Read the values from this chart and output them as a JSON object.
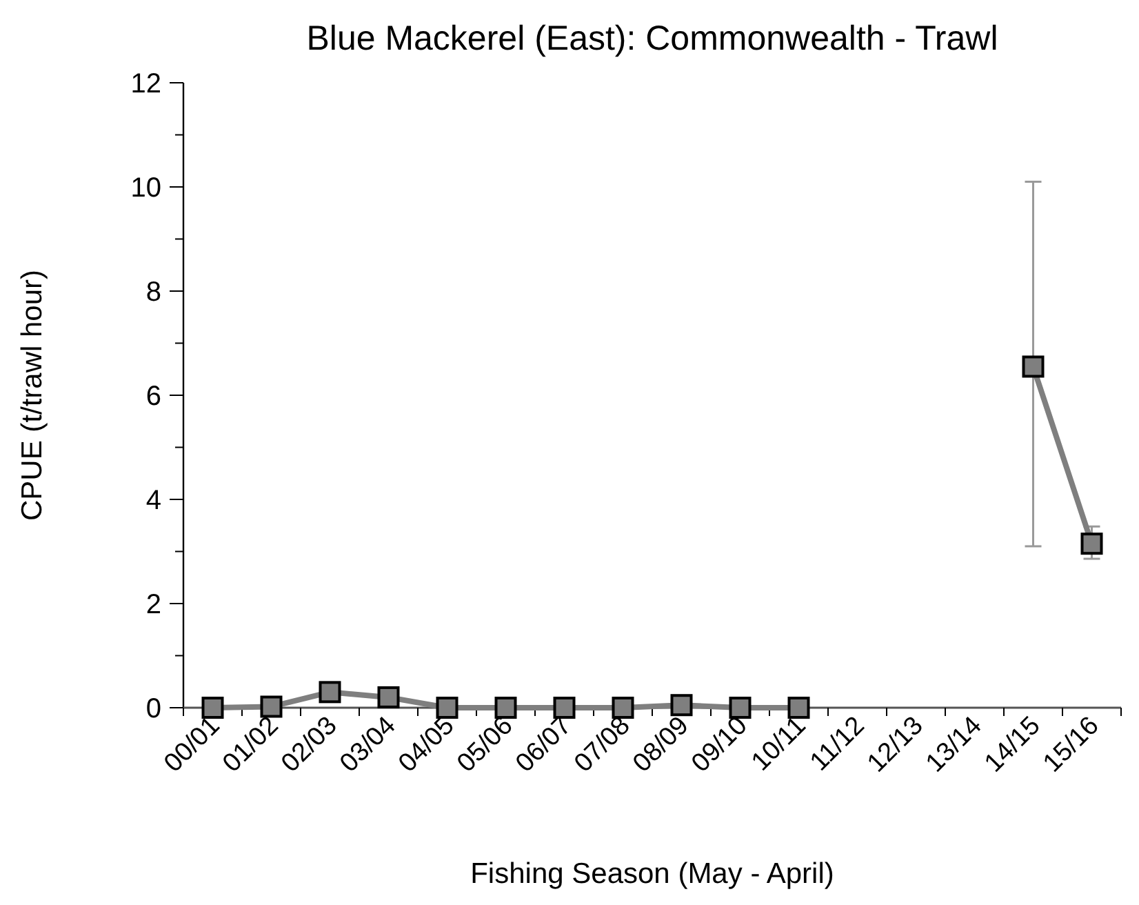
{
  "chart_data": {
    "type": "line",
    "title": "Blue Mackerel (East): Commonwealth - Trawl",
    "xlabel": "Fishing Season (May - April)",
    "ylabel": "CPUE (t/trawl hour)",
    "categories": [
      "00/01",
      "01/02",
      "02/03",
      "03/04",
      "04/05",
      "05/06",
      "06/07",
      "07/08",
      "08/09",
      "09/10",
      "10/11",
      "11/12",
      "12/13",
      "13/14",
      "14/15",
      "15/16"
    ],
    "series": [
      {
        "color": "#7f7f7f",
        "values": [
          0,
          0.02,
          0.3,
          0.2,
          0,
          0,
          0,
          0,
          0.05,
          0,
          0,
          null,
          null,
          null,
          6.55,
          3.15
        ],
        "errors": [
          null,
          null,
          null,
          null,
          null,
          null,
          null,
          null,
          null,
          null,
          null,
          null,
          null,
          null,
          [
            3.1,
            10.1
          ],
          [
            2.86,
            3.48
          ]
        ]
      }
    ],
    "ylim": [
      0,
      12
    ],
    "yticks": [
      0,
      {
        "value": 1,
        "label": null
      },
      2,
      {
        "value": 3,
        "label": null
      },
      4,
      {
        "value": 5,
        "label": null
      },
      6,
      {
        "value": 7,
        "label": null
      },
      8,
      {
        "value": 9,
        "label": null
      },
      10,
      {
        "value": 11,
        "label": null
      },
      12
    ],
    "grid": false,
    "marker": "square",
    "line_style": "solid"
  }
}
